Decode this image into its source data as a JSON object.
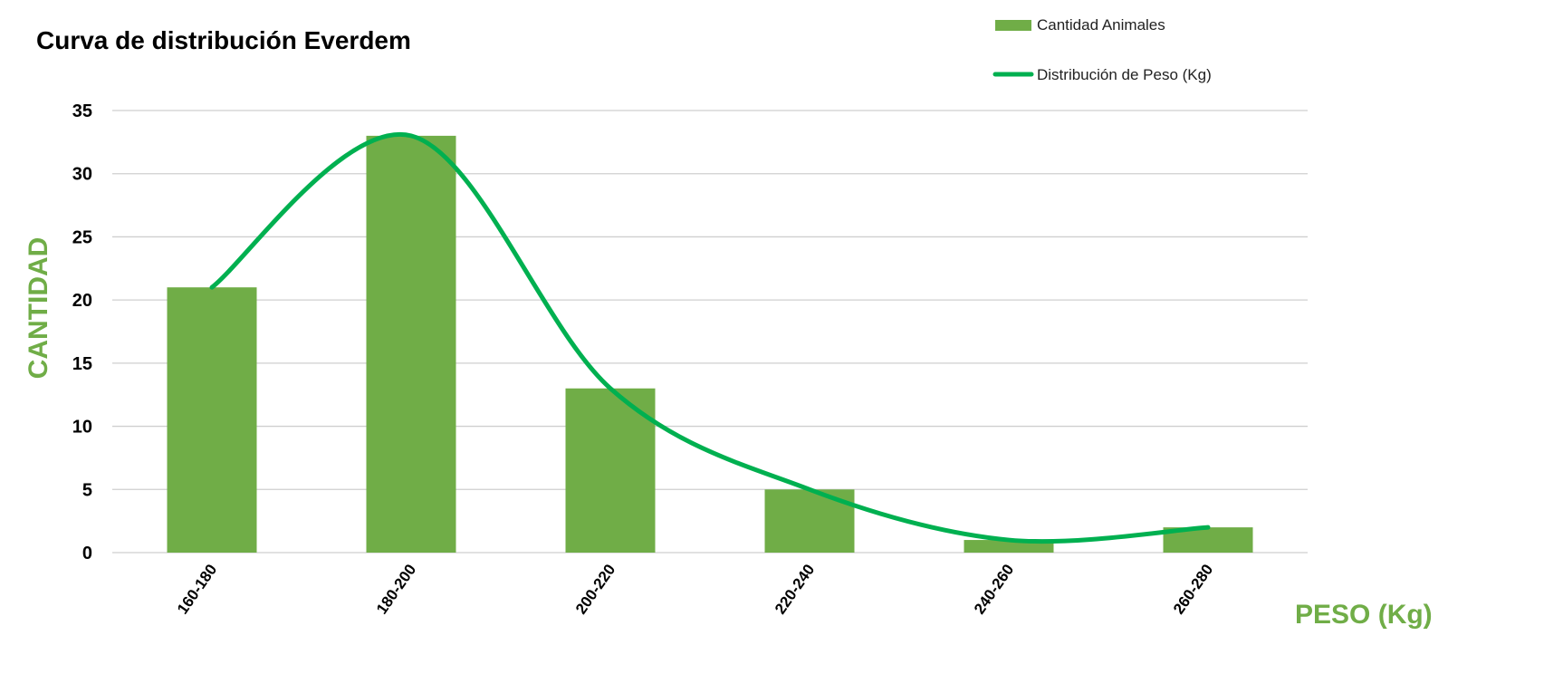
{
  "chart_data": {
    "type": "bar",
    "title": "Curva de distribución Everdem",
    "xlabel": "PESO (Kg)",
    "ylabel": "CANTIDAD",
    "categories": [
      "160-180",
      "180-200",
      "200-220",
      "220-240",
      "240-260",
      "260-280"
    ],
    "series": [
      {
        "name": "Cantidad Animales",
        "type": "bar",
        "values": [
          21,
          33,
          13,
          5,
          1,
          2
        ]
      },
      {
        "name": "Distribución de Peso (Kg)",
        "type": "smooth-line",
        "values": [
          21,
          33,
          13,
          5,
          1,
          2
        ]
      }
    ],
    "ylim": [
      0,
      35
    ],
    "yticks": [
      0,
      5,
      10,
      15,
      20,
      25,
      30,
      35
    ],
    "grid": true,
    "legend_position": "top-right",
    "colors": {
      "bar": "#70ad47",
      "line": "#00b050",
      "axis_label": "#70ad47"
    }
  }
}
